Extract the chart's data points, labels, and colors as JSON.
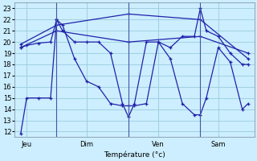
{
  "background_color": "#cceeff",
  "grid_color": "#99ccdd",
  "line_color": "#2222aa",
  "marker_color": "#2222aa",
  "xlabel": "Température (°c)",
  "ylim": [
    11.5,
    23.5
  ],
  "yticks": [
    12,
    13,
    14,
    15,
    16,
    17,
    18,
    19,
    20,
    21,
    22,
    23
  ],
  "xlim": [
    0,
    20
  ],
  "day_labels": [
    "Jeu",
    "Dim",
    "Ven",
    "Sam"
  ],
  "day_positions": [
    1,
    6,
    12,
    17
  ],
  "vline_positions": [
    3.5,
    9.5,
    15.5
  ],
  "series": [
    {
      "x": [
        0.5,
        1,
        2,
        3,
        3.5,
        4,
        5,
        6,
        7,
        8,
        9,
        9.5,
        10,
        11,
        12,
        13,
        14,
        15,
        15.5,
        16,
        17,
        18,
        19,
        19.5
      ],
      "y": [
        11.8,
        15,
        15,
        15,
        22,
        21.5,
        18.5,
        16.5,
        16,
        14.5,
        14.3,
        14.3,
        14.3,
        14.5,
        20,
        18.5,
        14.5,
        13.5,
        13.5,
        15,
        19.5,
        18.2,
        14,
        14.5
      ]
    },
    {
      "x": [
        0.5,
        1,
        2,
        3,
        3.5,
        4,
        5,
        6,
        7,
        8,
        9,
        9.5,
        10,
        11,
        12,
        13,
        14,
        15,
        15.5,
        16,
        17,
        18,
        19,
        19.5
      ],
      "y": [
        19.5,
        19.7,
        19.9,
        20,
        22,
        21,
        20,
        20,
        20,
        19,
        14.5,
        13.3,
        14.5,
        20,
        20,
        19.5,
        20.5,
        20.5,
        23,
        21,
        20.5,
        19,
        18,
        18
      ]
    },
    {
      "x": [
        0.5,
        3.5,
        9.5,
        15.5,
        19.5
      ],
      "y": [
        19.5,
        21,
        20,
        20.5,
        19
      ]
    },
    {
      "x": [
        0.5,
        3.5,
        9.5,
        15.5,
        19.5
      ],
      "y": [
        19.8,
        21.5,
        22.5,
        22,
        18.5
      ]
    }
  ]
}
